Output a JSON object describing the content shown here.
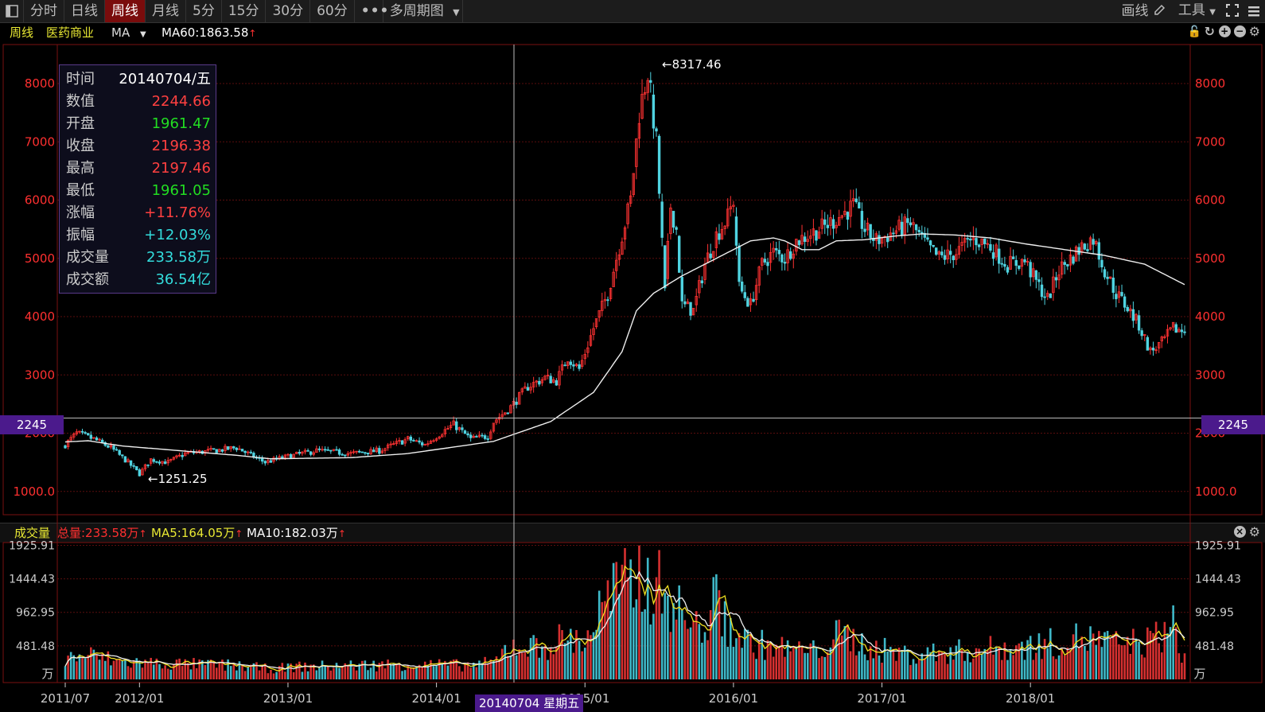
{
  "toolbar": {
    "tabs": [
      {
        "label": "分时",
        "active": false
      },
      {
        "label": "日线",
        "active": false
      },
      {
        "label": "周线",
        "active": true
      },
      {
        "label": "月线",
        "active": false
      },
      {
        "label": "5分",
        "active": false
      },
      {
        "label": "15分",
        "active": false
      },
      {
        "label": "30分",
        "active": false
      },
      {
        "label": "60分",
        "active": false
      }
    ],
    "more_icon": "ellipsis-icon",
    "multi_period": "多周期图",
    "draw_label": "画线",
    "tools_label": "工具"
  },
  "infobar": {
    "period": "周线",
    "sector": "医药商业",
    "indicator": "MA",
    "ma60": "MA60:1863.58"
  },
  "tooltip": {
    "rows": [
      {
        "label": "时间",
        "value": "20140704/五",
        "color": "#ffffff"
      },
      {
        "label": "数值",
        "value": "2244.66",
        "color": "#ff4040"
      },
      {
        "label": "开盘",
        "value": "1961.47",
        "color": "#22dd22"
      },
      {
        "label": "收盘",
        "value": "2196.38",
        "color": "#ff4040"
      },
      {
        "label": "最高",
        "value": "2197.46",
        "color": "#ff4040"
      },
      {
        "label": "最低",
        "value": "1961.05",
        "color": "#22dd22"
      },
      {
        "label": "涨幅",
        "value": "+11.76%",
        "color": "#ff4040"
      },
      {
        "label": "振幅",
        "value": "+12.03%",
        "color": "#33dddd"
      },
      {
        "label": "成交量",
        "value": "233.58万",
        "color": "#33dddd"
      },
      {
        "label": "成交额",
        "value": "36.54亿",
        "color": "#33dddd"
      }
    ]
  },
  "volume_bar": {
    "title": "成交量",
    "total": "总量:233.58万",
    "ma5": "MA5:164.05万",
    "ma10": "MA10:182.03万"
  },
  "crosshair": {
    "price_label": "2245",
    "date_label": "20140704 星期五"
  },
  "annotations": {
    "high": "←8317.46",
    "low": "←1251.25"
  },
  "chart_data": {
    "type": "candlestick",
    "price_axis": {
      "ticks": [
        1000,
        2000,
        3000,
        4000,
        5000,
        6000,
        7000,
        8000
      ],
      "tick_labels": [
        "1000.0",
        "2000",
        "3000",
        "4000",
        "5000",
        "6000",
        "7000",
        "8000"
      ]
    },
    "volume_axis": {
      "ticks": [
        481.48,
        962.95,
        1444.43,
        1925.91
      ],
      "unit": "万"
    },
    "x_axis": {
      "labels": [
        "2011/07",
        "2012/01",
        "2013/01",
        "2014/01",
        "2015/01",
        "2016/01",
        "2017/01",
        "2018/01"
      ],
      "label_weeks": [
        0,
        26,
        78,
        130,
        182,
        234,
        286,
        338
      ]
    },
    "close_anchors": [
      [
        0,
        1800
      ],
      [
        4,
        2000
      ],
      [
        10,
        1900
      ],
      [
        16,
        1750
      ],
      [
        22,
        1500
      ],
      [
        26,
        1300
      ],
      [
        30,
        1550
      ],
      [
        36,
        1500
      ],
      [
        42,
        1650
      ],
      [
        52,
        1700
      ],
      [
        60,
        1750
      ],
      [
        70,
        1500
      ],
      [
        78,
        1600
      ],
      [
        88,
        1700
      ],
      [
        100,
        1650
      ],
      [
        110,
        1700
      ],
      [
        120,
        1900
      ],
      [
        126,
        1800
      ],
      [
        130,
        1950
      ],
      [
        136,
        2150
      ],
      [
        142,
        1900
      ],
      [
        148,
        1950
      ],
      [
        150,
        2196
      ],
      [
        156,
        2450
      ],
      [
        162,
        2800
      ],
      [
        168,
        2950
      ],
      [
        172,
        2900
      ],
      [
        176,
        3300
      ],
      [
        180,
        3100
      ],
      [
        185,
        3800
      ],
      [
        190,
        4400
      ],
      [
        194,
        5200
      ],
      [
        198,
        6000
      ],
      [
        201,
        7500
      ],
      [
        204,
        8200
      ],
      [
        207,
        7000
      ],
      [
        210,
        4400
      ],
      [
        212,
        5900
      ],
      [
        214,
        5500
      ],
      [
        216,
        4200
      ],
      [
        220,
        4100
      ],
      [
        224,
        4900
      ],
      [
        228,
        5400
      ],
      [
        232,
        5700
      ],
      [
        234,
        6000
      ],
      [
        236,
        4500
      ],
      [
        240,
        4200
      ],
      [
        244,
        4900
      ],
      [
        248,
        5100
      ],
      [
        252,
        5000
      ],
      [
        256,
        5300
      ],
      [
        260,
        5400
      ],
      [
        266,
        5550
      ],
      [
        272,
        5750
      ],
      [
        276,
        5900
      ],
      [
        280,
        5500
      ],
      [
        284,
        5300
      ],
      [
        290,
        5450
      ],
      [
        296,
        5600
      ],
      [
        302,
        5200
      ],
      [
        306,
        5000
      ],
      [
        312,
        5100
      ],
      [
        318,
        5350
      ],
      [
        324,
        5200
      ],
      [
        330,
        4900
      ],
      [
        336,
        4950
      ],
      [
        340,
        4600
      ],
      [
        344,
        4300
      ],
      [
        348,
        4800
      ],
      [
        352,
        5000
      ],
      [
        356,
        5200
      ],
      [
        360,
        5350
      ],
      [
        364,
        4800
      ],
      [
        368,
        4400
      ],
      [
        372,
        4150
      ],
      [
        376,
        3850
      ],
      [
        380,
        3400
      ],
      [
        384,
        3550
      ],
      [
        388,
        3800
      ],
      [
        392,
        3750
      ]
    ],
    "ma60_anchors": [
      [
        0,
        1850
      ],
      [
        8,
        1870
      ],
      [
        20,
        1780
      ],
      [
        40,
        1700
      ],
      [
        60,
        1620
      ],
      [
        72,
        1560
      ],
      [
        100,
        1580
      ],
      [
        120,
        1650
      ],
      [
        150,
        1860
      ],
      [
        170,
        2200
      ],
      [
        185,
        2700
      ],
      [
        195,
        3400
      ],
      [
        200,
        4100
      ],
      [
        206,
        4400
      ],
      [
        216,
        4700
      ],
      [
        228,
        5000
      ],
      [
        240,
        5300
      ],
      [
        248,
        5350
      ],
      [
        252,
        5300
      ],
      [
        258,
        5150
      ],
      [
        264,
        5150
      ],
      [
        270,
        5300
      ],
      [
        280,
        5320
      ],
      [
        290,
        5380
      ],
      [
        300,
        5420
      ],
      [
        312,
        5400
      ],
      [
        324,
        5350
      ],
      [
        336,
        5250
      ],
      [
        350,
        5150
      ],
      [
        364,
        5050
      ],
      [
        378,
        4900
      ],
      [
        392,
        4550
      ]
    ],
    "volume_anchors": [
      [
        0,
        300
      ],
      [
        8,
        350
      ],
      [
        20,
        250
      ],
      [
        40,
        220
      ],
      [
        60,
        200
      ],
      [
        72,
        150
      ],
      [
        80,
        180
      ],
      [
        100,
        200
      ],
      [
        120,
        220
      ],
      [
        140,
        200
      ],
      [
        150,
        234
      ],
      [
        156,
        500
      ],
      [
        166,
        450
      ],
      [
        175,
        600
      ],
      [
        182,
        550
      ],
      [
        190,
        1200
      ],
      [
        198,
        1350
      ],
      [
        202,
        1500
      ],
      [
        208,
        1300
      ],
      [
        212,
        1200
      ],
      [
        216,
        900
      ],
      [
        222,
        700
      ],
      [
        228,
        1100
      ],
      [
        232,
        800
      ],
      [
        238,
        550
      ],
      [
        250,
        450
      ],
      [
        262,
        400
      ],
      [
        272,
        650
      ],
      [
        282,
        450
      ],
      [
        296,
        350
      ],
      [
        312,
        400
      ],
      [
        328,
        450
      ],
      [
        344,
        500
      ],
      [
        356,
        600
      ],
      [
        368,
        500
      ],
      [
        380,
        550
      ],
      [
        388,
        750
      ],
      [
        392,
        300
      ]
    ]
  }
}
